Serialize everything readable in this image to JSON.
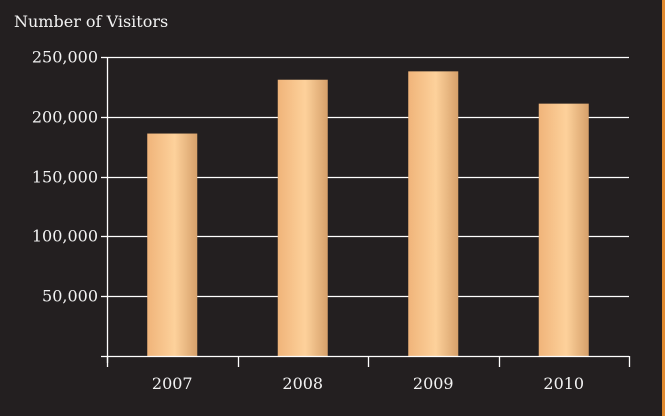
{
  "colors": {
    "background": "#231f20",
    "gridline": "#ffffff",
    "text": "#f2f2f2",
    "bar_light": "#fdd19b",
    "bar_mid": "#f3bd85",
    "bar_dark": "#d6a06a",
    "accent_strip": "#e0892e"
  },
  "chart_data": {
    "type": "bar",
    "title": "",
    "ylabel": "Number of  Visitors",
    "xlabel": "",
    "categories": [
      "2007",
      "2008",
      "2009",
      "2010"
    ],
    "series": [
      {
        "values": [
          186000,
          231000,
          238000,
          211000
        ]
      }
    ],
    "ylim": [
      0,
      250000
    ],
    "yticks": [
      0,
      50000,
      100000,
      150000,
      200000,
      250000
    ],
    "ytick_labels": [
      "",
      "50,000",
      "100,000",
      "150,000",
      "200,000",
      "250,000"
    ],
    "grid": true,
    "legend": "none"
  }
}
